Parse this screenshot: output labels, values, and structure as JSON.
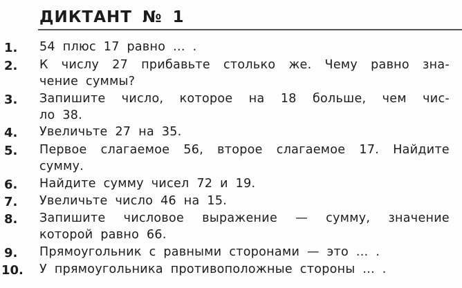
{
  "title": "ДИКТАНТ № 1",
  "items": [
    {
      "num": "1.",
      "lines": [
        "54 плюс 17 равно ... ."
      ]
    },
    {
      "num": "2.",
      "lines": [
        "К числу 27 прибавьте столько же. Чему равно зна-",
        "чение суммы?"
      ]
    },
    {
      "num": "3.",
      "lines": [
        "Запишите число, которое на 18 больше, чем чис-",
        "ло 38."
      ]
    },
    {
      "num": "4.",
      "lines": [
        "Увеличьте 27 на 35."
      ]
    },
    {
      "num": "5.",
      "lines": [
        "Первое слагаемое 56, второе слагаемое 17. Найдите",
        "сумму."
      ]
    },
    {
      "num": "6.",
      "lines": [
        "Найдите сумму чисел 72 и 19."
      ]
    },
    {
      "num": "7.",
      "lines": [
        "Увеличьте число 46 на 15."
      ]
    },
    {
      "num": "8.",
      "lines": [
        "Запишите числовое выражение — сумму, значение",
        "которой равно 66."
      ]
    },
    {
      "num": "9.",
      "lines": [
        "Прямоугольник с равными сторонами — это ... ."
      ]
    },
    {
      "num": "10.",
      "lines": [
        "У прямоугольника противоположные стороны ... ."
      ]
    }
  ]
}
